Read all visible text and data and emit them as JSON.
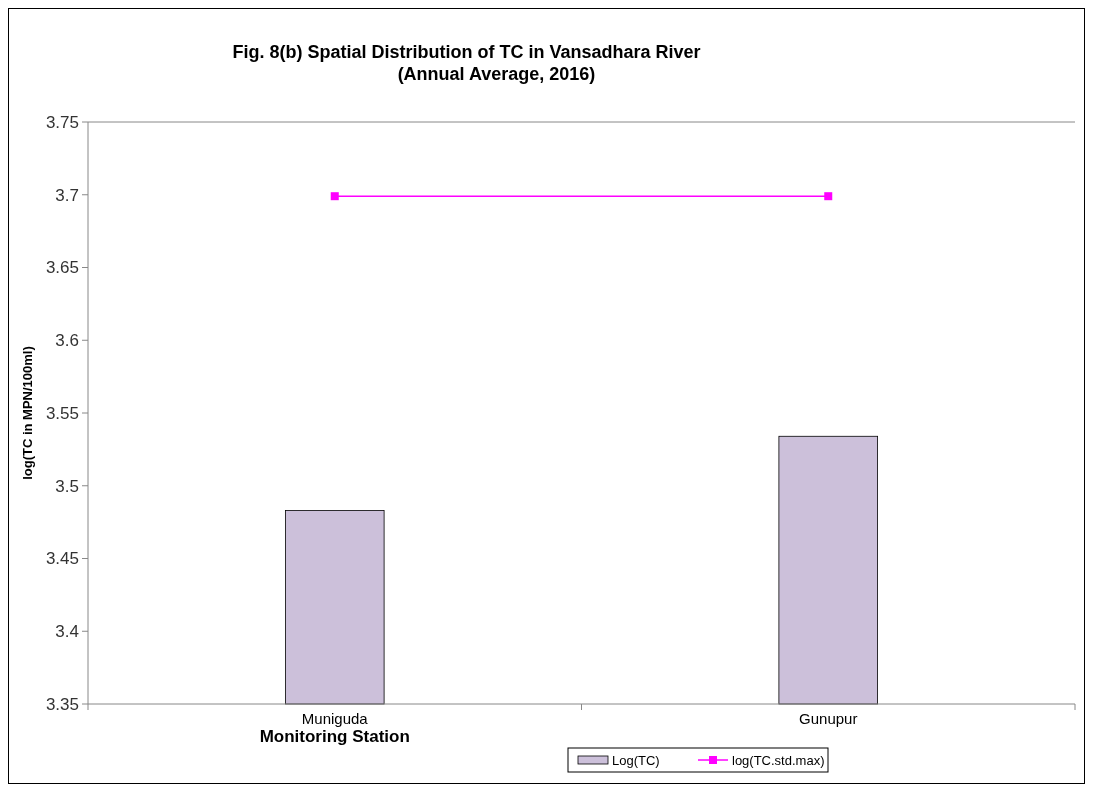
{
  "chart_data": {
    "type": "bar",
    "title": "Fig. 8(b)   Spatial Distribution of TC in Vansadhara River",
    "subtitle": "(Annual Average, 2016)",
    "xlabel": "Monitoring Station",
    "ylabel": "log(TC in MPN/100ml)",
    "categories": [
      "Muniguda",
      "Gunupur"
    ],
    "series": [
      {
        "name": "Log(TC)",
        "color": "#ccc0da",
        "values": [
          3.483,
          3.534
        ]
      },
      {
        "name": "log(TC.std.max)",
        "type": "line",
        "color": "#ff00ff",
        "values": [
          3.699,
          3.699
        ]
      }
    ],
    "ylim": [
      3.35,
      3.75
    ],
    "yticks": [
      3.35,
      3.4,
      3.45,
      3.5,
      3.55,
      3.6,
      3.65,
      3.7,
      3.75
    ],
    "grid": false,
    "legend": "bottom",
    "marker": "square"
  }
}
